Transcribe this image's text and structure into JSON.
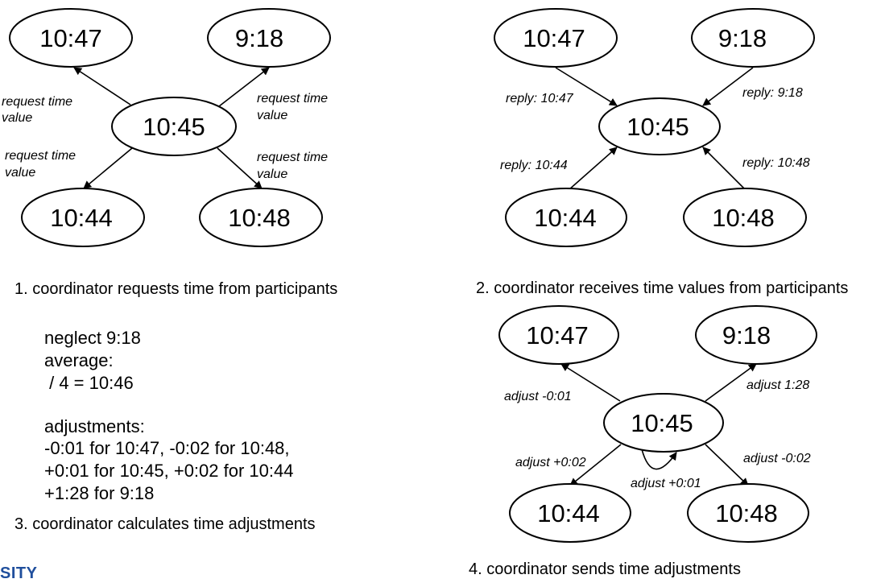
{
  "panels": [
    {
      "caption": "1. coordinator requests time from participants",
      "nodes": {
        "center": "10:45",
        "top_left": "10:47",
        "top_right": "9:18",
        "bottom_left": "10:44",
        "bottom_right": "10:48"
      },
      "edge_labels": {
        "top_left": [
          "request time",
          "value"
        ],
        "top_right": [
          "request time",
          "value"
        ],
        "bottom_left": [
          "request time",
          "value"
        ],
        "bottom_right": [
          "request time",
          "value"
        ]
      }
    },
    {
      "caption": "2. coordinator receives time values from participants",
      "nodes": {
        "center": "10:45",
        "top_left": "10:47",
        "top_right": "9:18",
        "bottom_left": "10:44",
        "bottom_right": "10:48"
      },
      "edge_labels": {
        "top_left": "reply: 10:47",
        "top_right": "reply: 9:18",
        "bottom_left": "reply: 10:44",
        "bottom_right": "reply: 10:48"
      }
    },
    {
      "caption": "3. coordinator calculates time adjustments",
      "lines": [
        "neglect 9:18",
        "average:",
        " / 4 = 10:46",
        "adjustments:",
        "-0:01 for 10:47, -0:02 for 10:48,",
        "+0:01 for 10:45, +0:02 for 10:44",
        "+1:28 for 9:18"
      ]
    },
    {
      "caption": "4. coordinator sends time adjustments",
      "nodes": {
        "center": "10:45",
        "top_left": "10:47",
        "top_right": "9:18",
        "bottom_left": "10:44",
        "bottom_right": "10:48"
      },
      "edge_labels": {
        "top_left": "adjust -0:01",
        "top_right": "adjust 1:28",
        "bottom_left": "adjust +0:02",
        "bottom_right": "adjust -0:02",
        "self": "adjust +0:01"
      }
    }
  ],
  "footer_fragment": "SITY"
}
